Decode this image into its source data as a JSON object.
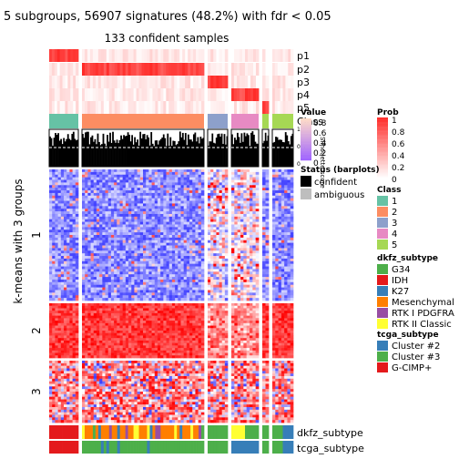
{
  "chart_data": {
    "type": "heatmap",
    "title": "5 subgroups, 56907 signatures (48.2%) with fdr < 0.05",
    "subtitle": "133 confident samples",
    "ylabel": "k-means with 3 groups",
    "row_groups": [
      "1",
      "2",
      "3"
    ],
    "row_group_fractions": [
      0.53,
      0.22,
      0.25
    ],
    "column_groups": [
      {
        "class": "1",
        "fraction": 0.13
      },
      {
        "class": "2",
        "fraction": 0.54
      },
      {
        "class": "3",
        "fraction": 0.09
      },
      {
        "class": "4",
        "fraction": 0.12
      },
      {
        "class": "5",
        "fraction": 0.03
      },
      {
        "class": "n",
        "fraction": 0.04
      }
    ],
    "prob_tracks": [
      "p1",
      "p2",
      "p3",
      "p4",
      "p5"
    ],
    "silhouette_label": "Silhouette score",
    "silhouette_ticks": [
      "0",
      "0.5",
      "1"
    ],
    "track_labels": [
      "Class",
      "dkfz_subtype",
      "tcga_subtype"
    ],
    "legends": {
      "value": {
        "title": "Value",
        "ticks": [
          "0.8",
          "0.6",
          "0.4",
          "0.2",
          "0"
        ]
      },
      "prob": {
        "title": "Prob",
        "ticks": [
          "1",
          "0.8",
          "0.6",
          "0.4",
          "0.2",
          "0"
        ]
      },
      "status": {
        "title": "Status (barplots)",
        "items": [
          {
            "label": "confident",
            "color": "#000000"
          },
          {
            "label": "ambiguous",
            "color": "#bebebe"
          }
        ]
      },
      "class": {
        "title": "Class",
        "items": [
          {
            "label": "1",
            "color": "#66c2a5"
          },
          {
            "label": "2",
            "color": "#fc8d62"
          },
          {
            "label": "3",
            "color": "#8da0cb"
          },
          {
            "label": "4",
            "color": "#e78ac3"
          },
          {
            "label": "5",
            "color": "#a6d854"
          }
        ]
      },
      "dkfz": {
        "title": "dkfz_subtype",
        "items": [
          {
            "label": "G34",
            "color": "#4daf4a"
          },
          {
            "label": "IDH",
            "color": "#e41a1c"
          },
          {
            "label": "K27",
            "color": "#377eb8"
          },
          {
            "label": "Mesenchymal",
            "color": "#ff7f00"
          },
          {
            "label": "RTK I PDGFRA",
            "color": "#984ea3"
          },
          {
            "label": "RTK II Classic",
            "color": "#ffff33"
          }
        ]
      },
      "tcga": {
        "title": "tcga_subtype",
        "items": [
          {
            "label": "Cluster #2",
            "color": "#377eb8"
          },
          {
            "label": "Cluster #3",
            "color": "#4daf4a"
          },
          {
            "label": "G-CIMP+",
            "color": "#e41a1c"
          }
        ]
      }
    },
    "colors": {
      "high": "#ff0000",
      "mid": "#ffffff",
      "low": "#0000ff",
      "prob_high": "#ef2b28",
      "silhouette_bg": "#000000"
    }
  }
}
